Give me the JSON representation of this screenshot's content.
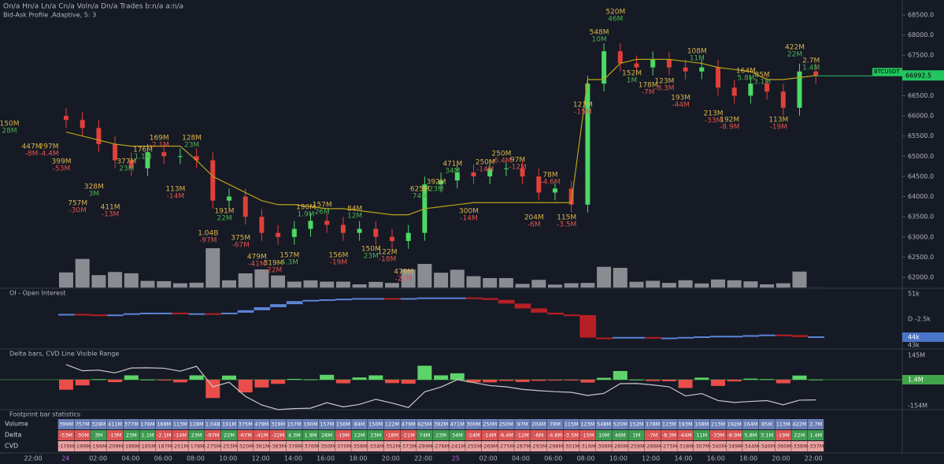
{
  "header": {
    "line1": "On/a Hn/a Ln/a Cn/a Voln/a Dn/a Trades b:n/a a:n/a",
    "line2": "Bid-Ask Profile ,Adaptive, 5: 3"
  },
  "price_axis": {
    "ylim": [
      61800,
      68800
    ],
    "yticks": [
      {
        "value": 68500,
        "label": "68500.0"
      },
      {
        "value": 68000,
        "label": "68000.0"
      },
      {
        "value": 67500,
        "label": "67500.0"
      },
      {
        "value": 67000,
        "label": "67000.0"
      },
      {
        "value": 66500,
        "label": "66500.0"
      },
      {
        "value": 66000,
        "label": "66000.0"
      },
      {
        "value": 65500,
        "label": "65500.0"
      },
      {
        "value": 65000,
        "label": "65000.0"
      },
      {
        "value": 64500,
        "label": "64500.0"
      },
      {
        "value": 64000,
        "label": "64000.0"
      },
      {
        "value": 63500,
        "label": "63500.0"
      },
      {
        "value": 63000,
        "label": "63000.0"
      },
      {
        "value": 62500,
        "label": "62500.0"
      },
      {
        "value": 62000,
        "label": "62000.0"
      }
    ]
  },
  "last_price": {
    "symbol": "BTCUSDT",
    "value": 66992.5,
    "label": "66992.5"
  },
  "candles": {
    "close": [
      65900,
      65700,
      65300,
      64900,
      64700,
      65100,
      65000,
      65000,
      64900,
      63900,
      64000,
      63500,
      63100,
      63000,
      63200,
      63400,
      63300,
      63100,
      63200,
      63000,
      62900,
      63100,
      64300,
      64400,
      64600,
      64500,
      64700,
      64700,
      64500,
      64100,
      64200,
      63800,
      66800,
      67600,
      67300,
      67200,
      67400,
      67200,
      67100,
      67200,
      66700,
      66500,
      66800,
      66600,
      66200,
      67100,
      66990
    ],
    "line": [
      65600,
      65500,
      65400,
      65300,
      65250,
      65250,
      65250,
      65250,
      64900,
      64500,
      64300,
      64100,
      63900,
      63800,
      63800,
      63750,
      63700,
      63700,
      63650,
      63600,
      63550,
      63550,
      63700,
      63750,
      63800,
      63850,
      63850,
      63850,
      63850,
      63850,
      63850,
      63850,
      66900,
      66900,
      67300,
      67400,
      67400,
      67400,
      67350,
      67300,
      67200,
      67150,
      67100,
      66900,
      66900,
      66950,
      67000
    ],
    "volume": [
      399,
      757,
      328,
      411,
      377,
      176,
      169,
      113,
      128,
      1040,
      191,
      375,
      479,
      319,
      157,
      190,
      157,
      156,
      84,
      150,
      122,
      479,
      625,
      392,
      471,
      300,
      250,
      250,
      97,
      204,
      78,
      115,
      123,
      548,
      520,
      152,
      178,
      123,
      193,
      108,
      213,
      192,
      164,
      85,
      113,
      422,
      2.7
    ]
  },
  "extra_annotations": [
    {
      "top": "150M",
      "bottom": "28M"
    },
    {
      "top": "447M",
      "bottom": "-8M"
    },
    {
      "top": "297M",
      "bottom": "-4.4M"
    }
  ],
  "oi": {
    "title": "OI - Open Interest",
    "labels": [
      "51k",
      "D -2.5k",
      "44k",
      "43k"
    ],
    "ylim": [
      43,
      51
    ],
    "values": [
      47.7,
      47.6,
      47.5,
      47.6,
      47.8,
      47.9,
      47.9,
      47.8,
      47.8,
      47.7,
      47.9,
      48.3,
      48.8,
      49.3,
      49.8,
      50.0,
      50.1,
      50.2,
      50.3,
      50.3,
      50.2,
      50.3,
      50.4,
      50.4,
      50.4,
      50.3,
      50.0,
      49.4,
      48.6,
      47.9,
      47.6,
      47.5,
      43.8,
      43.7,
      43.9,
      43.9,
      43.8,
      43.8,
      43.9,
      44.0,
      44.1,
      44.1,
      44.2,
      44.3,
      44.2,
      43.9,
      44.0
    ]
  },
  "delta_pane": {
    "title": "Delta bars, CVD Line Visible Range",
    "labels": [
      "145M",
      "1.4M",
      "-154M"
    ],
    "delta": [
      -53,
      -30,
      3,
      -13,
      23,
      1.1,
      -2.1,
      -14,
      23,
      -97,
      22,
      -67,
      -41,
      -22,
      4.3,
      1.9,
      26,
      -19,
      12,
      23,
      -18,
      -21,
      74,
      23,
      34,
      -14,
      -14,
      -6.4,
      -12,
      -6,
      -4.6,
      -3.5,
      -15,
      10,
      46,
      1,
      -7,
      -8.3,
      -44,
      11,
      -33,
      -8.9,
      5.8,
      3.1,
      -19,
      22,
      1.4
    ],
    "cvd": [
      -170,
      -199,
      -196,
      -209,
      -186,
      -185,
      -187,
      -201,
      -178,
      -275,
      -253,
      -320,
      -361,
      -383,
      -378,
      -376,
      -350,
      -370,
      -358,
      -334,
      -352,
      -373,
      -299,
      -276,
      -241,
      -255,
      -269,
      -275,
      -287,
      -293,
      -298,
      -301,
      -316,
      -306,
      -260,
      -259,
      -266,
      -275,
      -318,
      -307,
      -340,
      -349,
      -344,
      -340,
      -360,
      -338,
      -337
    ]
  },
  "table": {
    "title": "Footprint bar statistics",
    "row_labels": [
      "Volume",
      "Delta",
      "CVD"
    ],
    "rows": [
      [
        "399M",
        "757M",
        "328M",
        "411M",
        "377M",
        "176M",
        "169M",
        "113M",
        "128M",
        "1.04B",
        "191M",
        "375M",
        "479M",
        "319M",
        "157M",
        "190M",
        "157M",
        "156M",
        "84M",
        "150M",
        "122M",
        "479M",
        "625M",
        "392M",
        "471M",
        "300M",
        "250M",
        "250M",
        "97M",
        "204M",
        "78M",
        "115M",
        "123M",
        "548M",
        "520M",
        "152M",
        "178M",
        "123M",
        "193M",
        "108M",
        "213M",
        "192M",
        "164M",
        "85M",
        "113M",
        "422M",
        "2.7M"
      ],
      [
        "-53M",
        "-30M",
        "3M",
        "-13M",
        "23M",
        "1.1M",
        "-2.1M",
        "-14M",
        "23M",
        "-97M",
        "22M",
        "-67M",
        "-41M",
        "-22M",
        "4.3M",
        "1.9M",
        "26M",
        "-19M",
        "12M",
        "23M",
        "-18M",
        "-21M",
        "74M",
        "23M",
        "34M",
        "-14M",
        "-14M",
        "-6.4M",
        "-12M",
        "-6M",
        "-4.6M",
        "-3.5M",
        "-15M",
        "10M",
        "46M",
        "1M",
        "-7M",
        "-8.3M",
        "-44M",
        "11M",
        "-33M",
        "-8.9M",
        "5.8M",
        "3.1M",
        "-19M",
        "22M",
        "1.4M"
      ],
      [
        "-170M",
        "-199M",
        "-196M",
        "-209M",
        "-186M",
        "-185M",
        "-187M",
        "-201M",
        "-178M",
        "-275M",
        "-253M",
        "-320M",
        "-361M",
        "-383M",
        "-378M",
        "-376M",
        "-350M",
        "-370M",
        "-358M",
        "-334M",
        "-352M",
        "-373M",
        "-299M",
        "-276M",
        "-241M",
        "-255M",
        "-269M",
        "-275M",
        "-287M",
        "-293M",
        "-298M",
        "-301M",
        "-316M",
        "-306M",
        "-260M",
        "-259M",
        "-266M",
        "-275M",
        "-318M",
        "-307M",
        "-340M",
        "-349M",
        "-344M",
        "-340M",
        "-360M",
        "-338M",
        "-337M"
      ]
    ]
  },
  "time_axis": [
    "22:00",
    "24",
    "02:00",
    "04:00",
    "06:00",
    "08:00",
    "10:00",
    "12:00",
    "14:00",
    "16:00",
    "18:00",
    "20:00",
    "22:00",
    "25",
    "02:00",
    "04:00",
    "06:00",
    "08:00",
    "10:00",
    "12:00",
    "14:00",
    "16:00",
    "18:00",
    "20:00",
    "22:00"
  ]
}
